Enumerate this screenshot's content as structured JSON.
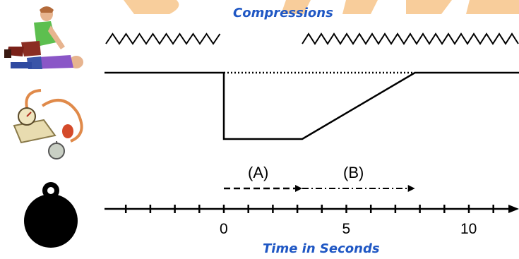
{
  "header": {
    "title": "Compressions"
  },
  "footer": {
    "axis_title": "Time in Seconds"
  },
  "phases": [
    {
      "label": "(A)"
    },
    {
      "label": "(B)"
    }
  ],
  "axis": {
    "tick_labels": [
      {
        "value": 0,
        "text": "0"
      },
      {
        "value": 5,
        "text": "5"
      },
      {
        "value": 10,
        "text": "10"
      }
    ],
    "tick_values": [
      -4,
      -3,
      -2,
      -1,
      0,
      1,
      2,
      3,
      4,
      5,
      6,
      7,
      8,
      9,
      10,
      11
    ]
  },
  "timeline": {
    "compressions_stop": 0,
    "compressions_resume": 3.2,
    "pressure_recovered": 7.8,
    "phase_a_end": 3.2,
    "phase_b_end": 7.8
  },
  "icons": {
    "cpr": "cpr-rescuer-icon",
    "sphygmomanometer": "sphygmomanometer-icon",
    "stopwatch": "stopwatch-icon"
  },
  "colors": {
    "title_blue": "#1f57c4",
    "watermark": "#f3a64a",
    "line": "#000000"
  }
}
